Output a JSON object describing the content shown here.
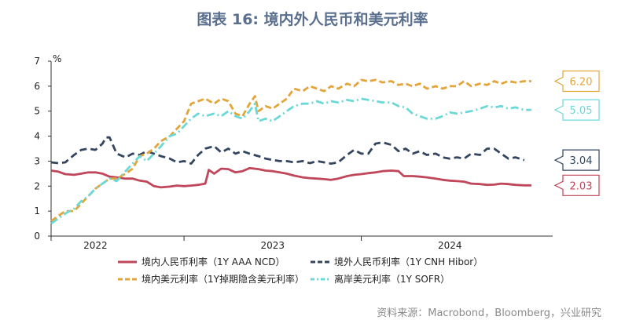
{
  "header": {
    "title": "图表 16: 境内外人民币和美元利率"
  },
  "footer": {
    "source": "资料来源：Macrobond，Bloomberg，兴业研究"
  },
  "chart_data": {
    "type": "line",
    "ylabel": "%",
    "ylim": [
      0,
      7
    ],
    "yticks": [
      "0",
      "1",
      "2",
      "3",
      "4",
      "5",
      "6",
      "7"
    ],
    "xlim": [
      2021.75,
      2024.58
    ],
    "xticks": [
      {
        "label": "2022",
        "x": 2022.0
      },
      {
        "label": "2023",
        "x": 2023.0
      },
      {
        "label": "2024",
        "x": 2024.0
      }
    ],
    "xbounds": [
      2021.75,
      2022.5,
      2023.5
    ],
    "grid": false,
    "legend_position": "bottom",
    "series": [
      {
        "name": "境内人民币利率（1Y AAA NCD）",
        "color": "#c0465a",
        "dash": "solid",
        "end_label": "2.03",
        "points": [
          [
            2021.75,
            2.62
          ],
          [
            2021.79,
            2.58
          ],
          [
            2021.83,
            2.48
          ],
          [
            2021.88,
            2.45
          ],
          [
            2021.92,
            2.5
          ],
          [
            2021.96,
            2.55
          ],
          [
            2022.0,
            2.55
          ],
          [
            2022.04,
            2.5
          ],
          [
            2022.08,
            2.38
          ],
          [
            2022.12,
            2.35
          ],
          [
            2022.17,
            2.3
          ],
          [
            2022.21,
            2.3
          ],
          [
            2022.25,
            2.22
          ],
          [
            2022.29,
            2.18
          ],
          [
            2022.33,
            2.0
          ],
          [
            2022.37,
            1.95
          ],
          [
            2022.42,
            1.98
          ],
          [
            2022.46,
            2.02
          ],
          [
            2022.5,
            2.0
          ],
          [
            2022.54,
            2.02
          ],
          [
            2022.58,
            2.05
          ],
          [
            2022.62,
            2.1
          ],
          [
            2022.64,
            2.65
          ],
          [
            2022.67,
            2.5
          ],
          [
            2022.71,
            2.7
          ],
          [
            2022.75,
            2.68
          ],
          [
            2022.79,
            2.55
          ],
          [
            2022.83,
            2.6
          ],
          [
            2022.87,
            2.72
          ],
          [
            2022.92,
            2.68
          ],
          [
            2022.96,
            2.62
          ],
          [
            2023.0,
            2.6
          ],
          [
            2023.04,
            2.55
          ],
          [
            2023.08,
            2.5
          ],
          [
            2023.12,
            2.42
          ],
          [
            2023.17,
            2.35
          ],
          [
            2023.21,
            2.32
          ],
          [
            2023.25,
            2.3
          ],
          [
            2023.29,
            2.28
          ],
          [
            2023.33,
            2.25
          ],
          [
            2023.37,
            2.3
          ],
          [
            2023.42,
            2.4
          ],
          [
            2023.46,
            2.45
          ],
          [
            2023.5,
            2.48
          ],
          [
            2023.54,
            2.52
          ],
          [
            2023.58,
            2.55
          ],
          [
            2023.62,
            2.6
          ],
          [
            2023.67,
            2.62
          ],
          [
            2023.71,
            2.6
          ],
          [
            2023.74,
            2.4
          ],
          [
            2023.79,
            2.4
          ],
          [
            2023.83,
            2.38
          ],
          [
            2023.87,
            2.35
          ],
          [
            2023.92,
            2.3
          ],
          [
            2023.96,
            2.25
          ],
          [
            2024.0,
            2.22
          ],
          [
            2024.04,
            2.2
          ],
          [
            2024.08,
            2.18
          ],
          [
            2024.12,
            2.1
          ],
          [
            2024.17,
            2.08
          ],
          [
            2024.21,
            2.05
          ],
          [
            2024.25,
            2.06
          ],
          [
            2024.29,
            2.1
          ],
          [
            2024.33,
            2.08
          ],
          [
            2024.37,
            2.05
          ],
          [
            2024.42,
            2.03
          ],
          [
            2024.46,
            2.03
          ]
        ]
      },
      {
        "name": "境外人民币利率（1Y CNH Hibor）",
        "color": "#34465f",
        "dash": "9 5",
        "end_label": "3.04",
        "points": [
          [
            2021.75,
            2.95
          ],
          [
            2021.79,
            2.92
          ],
          [
            2021.83,
            2.95
          ],
          [
            2021.88,
            3.25
          ],
          [
            2021.92,
            3.45
          ],
          [
            2021.96,
            3.5
          ],
          [
            2022.0,
            3.45
          ],
          [
            2022.04,
            3.7
          ],
          [
            2022.06,
            3.95
          ],
          [
            2022.08,
            3.95
          ],
          [
            2022.12,
            3.3
          ],
          [
            2022.17,
            3.15
          ],
          [
            2022.21,
            3.3
          ],
          [
            2022.25,
            3.25
          ],
          [
            2022.29,
            3.4
          ],
          [
            2022.33,
            3.3
          ],
          [
            2022.37,
            3.2
          ],
          [
            2022.42,
            3.1
          ],
          [
            2022.46,
            2.95
          ],
          [
            2022.5,
            3.0
          ],
          [
            2022.54,
            2.9
          ],
          [
            2022.58,
            3.25
          ],
          [
            2022.62,
            3.5
          ],
          [
            2022.67,
            3.6
          ],
          [
            2022.71,
            3.35
          ],
          [
            2022.75,
            3.5
          ],
          [
            2022.79,
            3.3
          ],
          [
            2022.83,
            3.4
          ],
          [
            2022.87,
            3.3
          ],
          [
            2022.92,
            3.2
          ],
          [
            2022.96,
            3.1
          ],
          [
            2023.0,
            3.05
          ],
          [
            2023.04,
            3.0
          ],
          [
            2023.08,
            3.0
          ],
          [
            2023.12,
            2.95
          ],
          [
            2023.17,
            3.0
          ],
          [
            2023.21,
            2.92
          ],
          [
            2023.25,
            3.0
          ],
          [
            2023.29,
            2.95
          ],
          [
            2023.33,
            2.9
          ],
          [
            2023.37,
            2.95
          ],
          [
            2023.42,
            3.25
          ],
          [
            2023.46,
            3.45
          ],
          [
            2023.5,
            3.3
          ],
          [
            2023.54,
            3.3
          ],
          [
            2023.58,
            3.7
          ],
          [
            2023.62,
            3.75
          ],
          [
            2023.67,
            3.65
          ],
          [
            2023.71,
            3.4
          ],
          [
            2023.75,
            3.5
          ],
          [
            2023.79,
            3.3
          ],
          [
            2023.83,
            3.4
          ],
          [
            2023.87,
            3.25
          ],
          [
            2023.92,
            3.3
          ],
          [
            2023.96,
            3.15
          ],
          [
            2024.0,
            3.1
          ],
          [
            2024.04,
            3.15
          ],
          [
            2024.08,
            3.1
          ],
          [
            2024.12,
            3.3
          ],
          [
            2024.17,
            3.25
          ],
          [
            2024.21,
            3.5
          ],
          [
            2024.25,
            3.5
          ],
          [
            2024.29,
            3.3
          ],
          [
            2024.33,
            3.1
          ],
          [
            2024.37,
            3.15
          ],
          [
            2024.42,
            3.04
          ]
        ]
      },
      {
        "name": "境内美元利率（1Y掉期隐含美元利率）",
        "color": "#e3a53a",
        "dash": "8 4",
        "end_label": "6.20",
        "points": [
          [
            2021.75,
            0.6
          ],
          [
            2021.79,
            0.8
          ],
          [
            2021.83,
            1.0
          ],
          [
            2021.88,
            1.0
          ],
          [
            2021.92,
            1.3
          ],
          [
            2021.96,
            1.6
          ],
          [
            2022.0,
            1.9
          ],
          [
            2022.04,
            2.1
          ],
          [
            2022.08,
            2.3
          ],
          [
            2022.12,
            2.3
          ],
          [
            2022.17,
            2.5
          ],
          [
            2022.21,
            2.7
          ],
          [
            2022.25,
            3.2
          ],
          [
            2022.29,
            3.3
          ],
          [
            2022.33,
            3.5
          ],
          [
            2022.37,
            3.8
          ],
          [
            2022.42,
            4.0
          ],
          [
            2022.46,
            4.3
          ],
          [
            2022.5,
            4.6
          ],
          [
            2022.54,
            5.3
          ],
          [
            2022.58,
            5.4
          ],
          [
            2022.62,
            5.5
          ],
          [
            2022.67,
            5.3
          ],
          [
            2022.71,
            5.5
          ],
          [
            2022.75,
            5.4
          ],
          [
            2022.79,
            4.9
          ],
          [
            2022.83,
            4.8
          ],
          [
            2022.87,
            5.3
          ],
          [
            2022.9,
            5.6
          ],
          [
            2022.92,
            5.0
          ],
          [
            2022.96,
            5.2
          ],
          [
            2023.0,
            5.1
          ],
          [
            2023.04,
            5.3
          ],
          [
            2023.08,
            5.5
          ],
          [
            2023.12,
            5.9
          ],
          [
            2023.17,
            5.8
          ],
          [
            2023.21,
            6.0
          ],
          [
            2023.25,
            5.9
          ],
          [
            2023.29,
            5.8
          ],
          [
            2023.33,
            6.0
          ],
          [
            2023.37,
            5.9
          ],
          [
            2023.42,
            6.1
          ],
          [
            2023.46,
            6.0
          ],
          [
            2023.5,
            6.25
          ],
          [
            2023.54,
            6.2
          ],
          [
            2023.58,
            6.25
          ],
          [
            2023.62,
            6.15
          ],
          [
            2023.67,
            6.2
          ],
          [
            2023.71,
            6.05
          ],
          [
            2023.75,
            6.1
          ],
          [
            2023.79,
            6.0
          ],
          [
            2023.83,
            6.1
          ],
          [
            2023.87,
            5.9
          ],
          [
            2023.92,
            6.0
          ],
          [
            2023.96,
            5.9
          ],
          [
            2024.0,
            6.0
          ],
          [
            2024.04,
            6.0
          ],
          [
            2024.08,
            6.2
          ],
          [
            2024.12,
            6.0
          ],
          [
            2024.17,
            6.1
          ],
          [
            2024.21,
            6.05
          ],
          [
            2024.25,
            6.2
          ],
          [
            2024.29,
            6.1
          ],
          [
            2024.33,
            6.2
          ],
          [
            2024.37,
            6.15
          ],
          [
            2024.42,
            6.2
          ],
          [
            2024.46,
            6.2
          ]
        ]
      },
      {
        "name": "离岸美元利率（1Y SOFR）",
        "color": "#6dd8d8",
        "dash": "10 4 2 4",
        "end_label": "5.05",
        "points": [
          [
            2021.75,
            0.5
          ],
          [
            2021.79,
            0.7
          ],
          [
            2021.83,
            0.9
          ],
          [
            2021.88,
            1.1
          ],
          [
            2021.92,
            1.4
          ],
          [
            2021.96,
            1.6
          ],
          [
            2022.0,
            1.9
          ],
          [
            2022.04,
            2.1
          ],
          [
            2022.08,
            2.3
          ],
          [
            2022.12,
            2.2
          ],
          [
            2022.17,
            2.6
          ],
          [
            2022.21,
            2.9
          ],
          [
            2022.25,
            3.2
          ],
          [
            2022.29,
            3.0
          ],
          [
            2022.33,
            3.3
          ],
          [
            2022.37,
            3.6
          ],
          [
            2022.42,
            4.0
          ],
          [
            2022.46,
            4.1
          ],
          [
            2022.5,
            4.4
          ],
          [
            2022.54,
            4.7
          ],
          [
            2022.58,
            4.9
          ],
          [
            2022.62,
            4.8
          ],
          [
            2022.67,
            4.9
          ],
          [
            2022.71,
            4.8
          ],
          [
            2022.75,
            5.0
          ],
          [
            2022.79,
            4.8
          ],
          [
            2022.83,
            4.7
          ],
          [
            2022.87,
            5.0
          ],
          [
            2022.9,
            5.3
          ],
          [
            2022.92,
            4.6
          ],
          [
            2022.96,
            4.7
          ],
          [
            2023.0,
            4.6
          ],
          [
            2023.04,
            4.8
          ],
          [
            2023.08,
            5.0
          ],
          [
            2023.12,
            5.2
          ],
          [
            2023.17,
            5.3
          ],
          [
            2023.21,
            5.3
          ],
          [
            2023.25,
            5.4
          ],
          [
            2023.29,
            5.3
          ],
          [
            2023.33,
            5.4
          ],
          [
            2023.37,
            5.35
          ],
          [
            2023.42,
            5.45
          ],
          [
            2023.46,
            5.4
          ],
          [
            2023.5,
            5.5
          ],
          [
            2023.54,
            5.45
          ],
          [
            2023.58,
            5.4
          ],
          [
            2023.62,
            5.35
          ],
          [
            2023.67,
            5.35
          ],
          [
            2023.71,
            5.2
          ],
          [
            2023.75,
            5.15
          ],
          [
            2023.79,
            4.9
          ],
          [
            2023.83,
            4.8
          ],
          [
            2023.87,
            4.7
          ],
          [
            2023.92,
            4.7
          ],
          [
            2023.96,
            4.8
          ],
          [
            2024.0,
            4.95
          ],
          [
            2024.04,
            4.9
          ],
          [
            2024.08,
            4.95
          ],
          [
            2024.12,
            5.0
          ],
          [
            2024.17,
            5.1
          ],
          [
            2024.21,
            5.2
          ],
          [
            2024.25,
            5.15
          ],
          [
            2024.29,
            5.2
          ],
          [
            2024.33,
            5.1
          ],
          [
            2024.37,
            5.15
          ],
          [
            2024.42,
            5.05
          ],
          [
            2024.46,
            5.05
          ]
        ]
      }
    ]
  }
}
